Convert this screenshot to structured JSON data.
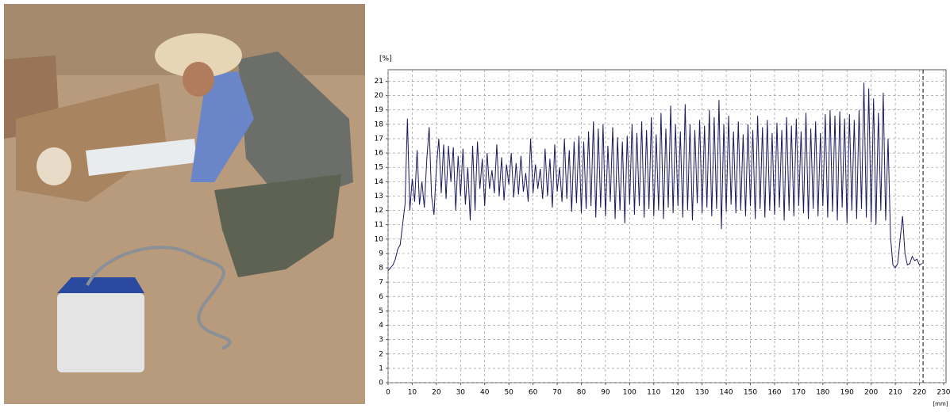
{
  "chart_data": {
    "type": "line",
    "y_label": "[%]",
    "x_label": "[mm]",
    "xlim": [
      0,
      231
    ],
    "ylim": [
      0,
      21.8
    ],
    "xticks": [
      0,
      10,
      20,
      30,
      40,
      50,
      60,
      70,
      80,
      90,
      100,
      110,
      120,
      130,
      140,
      150,
      160,
      170,
      180,
      190,
      200,
      210,
      220,
      230
    ],
    "yticks": [
      0,
      1,
      2,
      3,
      4,
      5,
      6,
      7,
      8,
      9,
      10,
      11,
      12,
      13,
      14,
      15,
      16,
      17,
      18,
      19,
      20,
      21
    ],
    "grid": true,
    "marker_x": 221.5,
    "marker_color": "#333333",
    "x": [
      0,
      1,
      2,
      3,
      4,
      5,
      6,
      7,
      8,
      9,
      10,
      11,
      12,
      13,
      14,
      15,
      16,
      17,
      18,
      19,
      20,
      21,
      22,
      23,
      24,
      25,
      26,
      27,
      28,
      29,
      30,
      31,
      32,
      33,
      34,
      35,
      36,
      37,
      38,
      39,
      40,
      41,
      42,
      43,
      44,
      45,
      46,
      47,
      48,
      49,
      50,
      51,
      52,
      53,
      54,
      55,
      56,
      57,
      58,
      59,
      60,
      61,
      62,
      63,
      64,
      65,
      66,
      67,
      68,
      69,
      70,
      71,
      72,
      73,
      74,
      75,
      76,
      77,
      78,
      79,
      80,
      81,
      82,
      83,
      84,
      85,
      86,
      87,
      88,
      89,
      90,
      91,
      92,
      93,
      94,
      95,
      96,
      97,
      98,
      99,
      100,
      101,
      102,
      103,
      104,
      105,
      106,
      107,
      108,
      109,
      110,
      111,
      112,
      113,
      114,
      115,
      116,
      117,
      118,
      119,
      120,
      121,
      122,
      123,
      124,
      125,
      126,
      127,
      128,
      129,
      130,
      131,
      132,
      133,
      134,
      135,
      136,
      137,
      138,
      139,
      140,
      141,
      142,
      143,
      144,
      145,
      146,
      147,
      148,
      149,
      150,
      151,
      152,
      153,
      154,
      155,
      156,
      157,
      158,
      159,
      160,
      161,
      162,
      163,
      164,
      165,
      166,
      167,
      168,
      169,
      170,
      171,
      172,
      173,
      174,
      175,
      176,
      177,
      178,
      179,
      180,
      181,
      182,
      183,
      184,
      185,
      186,
      187,
      188,
      189,
      190,
      191,
      192,
      193,
      194,
      195,
      196,
      197,
      198,
      199,
      200,
      201,
      202,
      203,
      204,
      205,
      206,
      207,
      208,
      209,
      210,
      211,
      212,
      213,
      214,
      215,
      216,
      217,
      218,
      219,
      220,
      221
    ],
    "series": [
      {
        "color": "#1a1a5e",
        "values": [
          7.8,
          8.0,
          8.2,
          8.6,
          9.3,
          9.6,
          11.0,
          12.4,
          18.4,
          12.0,
          14.2,
          12.6,
          16.2,
          12.4,
          14.0,
          12.2,
          15.5,
          17.8,
          13.0,
          11.7,
          15.0,
          17.0,
          13.2,
          16.6,
          12.8,
          16.5,
          14.0,
          16.4,
          12.0,
          15.8,
          13.0,
          16.3,
          12.4,
          15.0,
          11.3,
          16.5,
          12.0,
          16.8,
          13.5,
          15.6,
          12.3,
          16.0,
          13.5,
          14.8,
          13.2,
          16.6,
          13.0,
          15.7,
          12.7,
          15.2,
          13.8,
          16.0,
          12.9,
          15.3,
          13.1,
          15.8,
          13.3,
          14.6,
          12.6,
          17.0,
          13.2,
          15.2,
          13.5,
          14.9,
          12.8,
          16.3,
          13.0,
          15.6,
          12.2,
          16.6,
          13.3,
          15.0,
          12.6,
          17.0,
          12.8,
          16.2,
          11.9,
          16.8,
          12.5,
          17.2,
          11.8,
          16.8,
          12.1,
          17.5,
          12.3,
          18.2,
          11.5,
          17.7,
          12.2,
          18.0,
          11.6,
          16.5,
          12.6,
          17.8,
          11.4,
          17.1,
          12.0,
          16.8,
          11.1,
          17.2,
          12.4,
          18.0,
          11.7,
          17.4,
          12.3,
          18.2,
          11.5,
          17.6,
          12.1,
          18.5,
          11.6,
          17.3,
          12.0,
          18.8,
          11.4,
          17.7,
          12.2,
          19.3,
          11.8,
          18.0,
          12.3,
          17.5,
          11.5,
          19.4,
          12.0,
          18.0,
          11.3,
          17.6,
          12.5,
          18.3,
          11.8,
          17.9,
          12.2,
          19.0,
          11.6,
          18.5,
          12.1,
          19.7,
          10.7,
          18.0,
          11.9,
          18.6,
          12.4,
          17.5,
          11.8,
          18.2,
          12.0,
          17.3,
          11.6,
          18.0,
          12.3,
          17.6,
          11.4,
          18.6,
          12.1,
          17.8,
          11.5,
          18.3,
          12.0,
          17.4,
          11.7,
          18.1,
          12.2,
          17.6,
          11.3,
          18.5,
          12.0,
          17.9,
          11.6,
          18.4,
          12.3,
          17.5,
          11.8,
          18.8,
          11.4,
          17.7,
          12.1,
          18.2,
          11.6,
          17.4,
          12.3,
          18.7,
          11.5,
          19.0,
          11.9,
          18.6,
          11.3,
          18.9,
          12.2,
          18.4,
          11.1,
          18.7,
          12.0,
          18.3,
          11.4,
          19.0,
          12.1,
          20.9,
          11.5,
          20.5,
          11.2,
          19.8,
          11.0,
          18.8,
          12.0,
          20.2,
          11.3,
          17.0,
          10.2,
          8.2,
          8.0,
          8.3,
          10.0,
          11.6,
          9.0,
          8.2,
          8.3,
          8.8,
          8.5,
          8.6,
          8.2,
          8.3
        ]
      }
    ]
  }
}
